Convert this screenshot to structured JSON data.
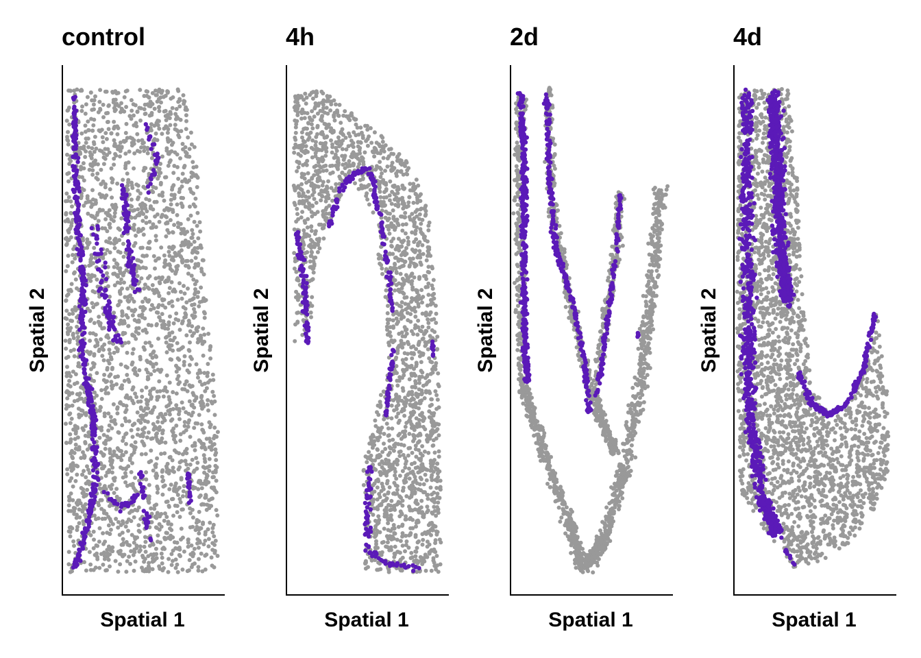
{
  "chart_data": [
    {
      "type": "scatter",
      "title": "control",
      "xlabel": "Spatial 1",
      "ylabel": "Spatial 2",
      "tick_labels": false,
      "grid": false,
      "background_color": "#999999",
      "highlight_color": "#5b1ab8",
      "shape": "tilted rectangular tissue section, grey everywhere, purple cells concentrated along the left edge",
      "highlight_fraction": 0.1
    },
    {
      "type": "scatter",
      "title": "4h",
      "xlabel": "Spatial 1",
      "ylabel": "Spatial 2",
      "tick_labels": false,
      "grid": false,
      "background_color": "#999999",
      "highlight_color": "#5b1ab8",
      "shape": "inverted-J shaped section, purple cells along the inner (concave) edge",
      "highlight_fraction": 0.1
    },
    {
      "type": "scatter",
      "title": "2d",
      "xlabel": "Spatial 1",
      "ylabel": "Spatial 2",
      "tick_labels": false,
      "grid": false,
      "background_color": "#999999",
      "highlight_color": "#5b1ab8",
      "shape": "U/V shaped section, purple band along the left arm and inner V",
      "highlight_fraction": 0.25
    },
    {
      "type": "scatter",
      "title": "4d",
      "xlabel": "Spatial 1",
      "ylabel": "Spatial 2",
      "tick_labels": false,
      "grid": false,
      "background_color": "#999999",
      "highlight_color": "#5b1ab8",
      "shape": "U shaped section, dense purple along the left arm and inner curve of the U",
      "highlight_fraction": 0.35
    }
  ]
}
